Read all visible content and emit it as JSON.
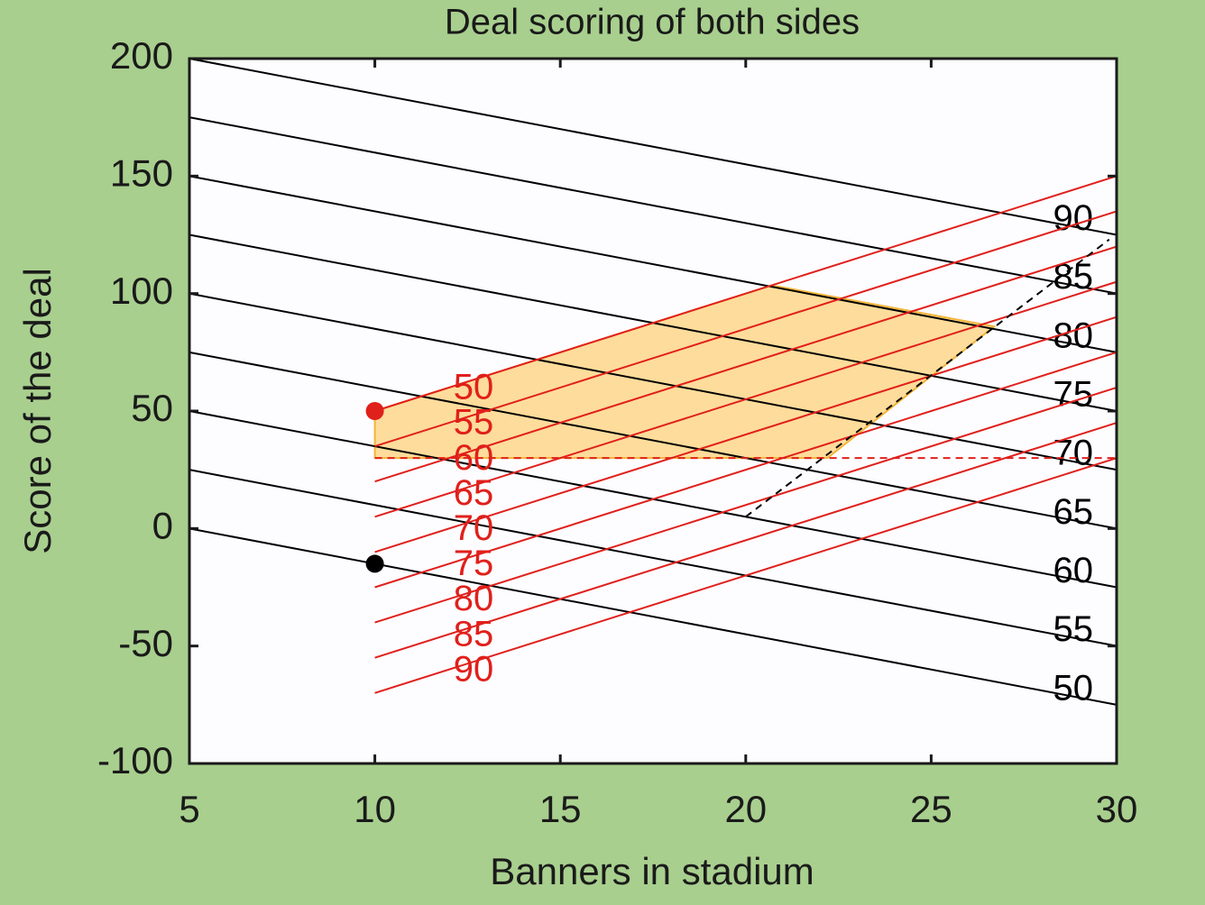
{
  "chart_data": {
    "type": "line",
    "title": "Deal scoring of both sides",
    "xlabel": "Banners in stadium",
    "ylabel": "Score of the deal",
    "xlim": [
      5,
      30
    ],
    "ylim": [
      -100,
      200
    ],
    "xticks": [
      5,
      10,
      15,
      20,
      25,
      30
    ],
    "yticks": [
      -100,
      -50,
      0,
      50,
      100,
      150,
      200
    ],
    "series": [
      {
        "name": "50",
        "color": "#000000",
        "x": [
          5,
          30
        ],
        "values": [
          0,
          -75
        ]
      },
      {
        "name": "55",
        "color": "#000000",
        "x": [
          5,
          30
        ],
        "values": [
          25,
          -50
        ]
      },
      {
        "name": "60",
        "color": "#000000",
        "x": [
          5,
          30
        ],
        "values": [
          50,
          -25
        ]
      },
      {
        "name": "65",
        "color": "#000000",
        "x": [
          5,
          30
        ],
        "values": [
          75,
          0
        ]
      },
      {
        "name": "70",
        "color": "#000000",
        "x": [
          5,
          30
        ],
        "values": [
          100,
          25
        ]
      },
      {
        "name": "75",
        "color": "#000000",
        "x": [
          5,
          30
        ],
        "values": [
          125,
          50
        ]
      },
      {
        "name": "80",
        "color": "#000000",
        "x": [
          5,
          30
        ],
        "values": [
          150,
          75
        ]
      },
      {
        "name": "85",
        "color": "#000000",
        "x": [
          5,
          30
        ],
        "values": [
          175,
          100
        ]
      },
      {
        "name": "90",
        "color": "#000000",
        "x": [
          5,
          30
        ],
        "values": [
          200,
          125
        ]
      },
      {
        "name": "50",
        "color": "#e0201b",
        "x": [
          10,
          30
        ],
        "values": [
          50,
          150
        ]
      },
      {
        "name": "55",
        "color": "#e0201b",
        "x": [
          10,
          30
        ],
        "values": [
          35,
          135
        ]
      },
      {
        "name": "60",
        "color": "#e0201b",
        "x": [
          10,
          30
        ],
        "values": [
          20,
          120
        ]
      },
      {
        "name": "65",
        "color": "#e0201b",
        "x": [
          10,
          30
        ],
        "values": [
          5,
          105
        ]
      },
      {
        "name": "70",
        "color": "#e0201b",
        "x": [
          10,
          30
        ],
        "values": [
          -10,
          90
        ]
      },
      {
        "name": "75",
        "color": "#e0201b",
        "x": [
          10,
          30
        ],
        "values": [
          -25,
          75
        ]
      },
      {
        "name": "80",
        "color": "#e0201b",
        "x": [
          10,
          30
        ],
        "values": [
          -40,
          60
        ]
      },
      {
        "name": "85",
        "color": "#e0201b",
        "x": [
          10,
          30
        ],
        "values": [
          -55,
          45
        ]
      },
      {
        "name": "90",
        "color": "#e0201b",
        "x": [
          10,
          30
        ],
        "values": [
          -70,
          30
        ]
      },
      {
        "color": "#e0201b",
        "dash": true,
        "x": [
          10,
          30
        ],
        "values": [
          30,
          30
        ]
      },
      {
        "color": "#000000",
        "dash": true,
        "x": [
          20,
          29.8
        ],
        "values": [
          5,
          123
        ]
      }
    ],
    "region": {
      "color": "#fdd27a",
      "x": [
        10,
        20.7,
        26.7,
        22.2,
        10
      ],
      "values": [
        50,
        103.5,
        86,
        30,
        30
      ]
    },
    "points": [
      {
        "color": "#e0201b",
        "x": 10,
        "y": 50
      },
      {
        "color": "#000000",
        "x": 10,
        "y": -15
      }
    ]
  }
}
